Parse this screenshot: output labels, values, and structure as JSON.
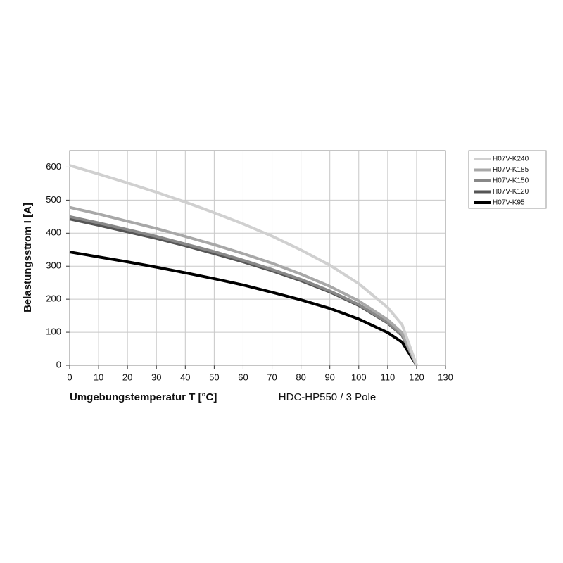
{
  "chart_data": {
    "type": "line",
    "x_label": "Umgebungstemperatur T [°C]",
    "y_label": "Belastungsstrom I [A]",
    "subtitle": "HDC-HP550 / 3 Pole",
    "x": [
      0,
      10,
      20,
      30,
      40,
      50,
      60,
      70,
      80,
      90,
      100,
      110,
      115,
      120
    ],
    "series": [
      {
        "name": "H07V-K240",
        "color": "#d0d0d0",
        "values": [
          605,
          579,
          552,
          524,
          494,
          462,
          428,
          391,
          349,
          303,
          247,
          175,
          123,
          0
        ]
      },
      {
        "name": "H07V-K185",
        "color": "#a8a8a8",
        "values": [
          478,
          458,
          436,
          414,
          390,
          365,
          338,
          309,
          276,
          239,
          195,
          138,
          98,
          0
        ]
      },
      {
        "name": "H07V-K150",
        "color": "#888888",
        "values": [
          450,
          431,
          411,
          390,
          367,
          344,
          318,
          290,
          260,
          225,
          184,
          130,
          92,
          0
        ]
      },
      {
        "name": "H07V-K120",
        "color": "#555555",
        "values": [
          443,
          424,
          404,
          384,
          362,
          338,
          313,
          286,
          256,
          222,
          181,
          128,
          90,
          0
        ]
      },
      {
        "name": "H07V-K95",
        "color": "#000000",
        "values": [
          343,
          328,
          313,
          297,
          280,
          262,
          243,
          221,
          198,
          172,
          140,
          99,
          70,
          0
        ]
      }
    ],
    "xlim": [
      0,
      130
    ],
    "xticks": [
      0,
      10,
      20,
      30,
      40,
      50,
      60,
      70,
      80,
      90,
      100,
      110,
      120,
      130
    ],
    "ylim": [
      0,
      650
    ],
    "yticks": [
      0,
      100,
      200,
      300,
      400,
      500,
      600
    ],
    "grid": true,
    "legend": "outside-right"
  }
}
